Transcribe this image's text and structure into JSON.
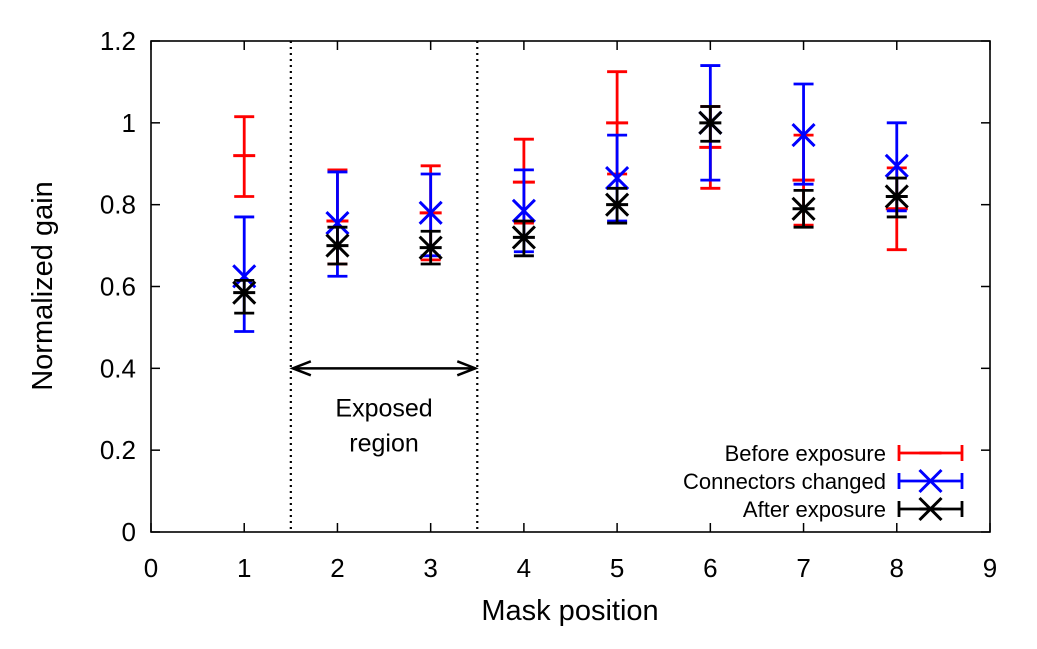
{
  "chart_data": {
    "type": "scatter",
    "title": "",
    "xlabel": "Mask position",
    "ylabel": "Normalized gain",
    "xlim": [
      0,
      9
    ],
    "ylim": [
      0,
      1.2
    ],
    "x_ticks": [
      "0",
      "1",
      "2",
      "3",
      "4",
      "5",
      "6",
      "7",
      "8",
      "9"
    ],
    "y_ticks": [
      "0",
      "0.2",
      "0.4",
      "0.6",
      "0.8",
      "1",
      "1.2"
    ],
    "grid": false,
    "legend_position": "bottom-right",
    "error_bars": true,
    "series": [
      {
        "name": "Before exposure",
        "color": "#ff0000",
        "marker": "plus",
        "points": [
          {
            "x": 1,
            "y": 0.92,
            "yerr": [
              0.82,
              1.015
            ]
          },
          {
            "x": 2,
            "y": 0.76,
            "yerr": [
              0.655,
              0.885
            ]
          },
          {
            "x": 3,
            "y": 0.78,
            "yerr": [
              0.665,
              0.895
            ]
          },
          {
            "x": 4,
            "y": 0.855,
            "yerr": [
              0.755,
              0.96
            ]
          },
          {
            "x": 5,
            "y": 1.0,
            "yerr": [
              0.875,
              1.125
            ]
          },
          {
            "x": 6,
            "y": 0.94,
            "yerr": [
              0.84,
              1.04
            ]
          },
          {
            "x": 7,
            "y": 0.86,
            "yerr": [
              0.75,
              0.97
            ]
          },
          {
            "x": 8,
            "y": 0.79,
            "yerr": [
              0.69,
              0.89
            ]
          }
        ]
      },
      {
        "name": "Connectors changed",
        "color": "#0000ff",
        "marker": "x",
        "points": [
          {
            "x": 1,
            "y": 0.625,
            "yerr": [
              0.49,
              0.77
            ]
          },
          {
            "x": 2,
            "y": 0.755,
            "yerr": [
              0.625,
              0.88
            ]
          },
          {
            "x": 3,
            "y": 0.78,
            "yerr": [
              0.675,
              0.875
            ]
          },
          {
            "x": 4,
            "y": 0.785,
            "yerr": [
              0.685,
              0.885
            ]
          },
          {
            "x": 5,
            "y": 0.865,
            "yerr": [
              0.76,
              0.97
            ]
          },
          {
            "x": 6,
            "y": 1.0,
            "yerr": [
              0.86,
              1.14
            ]
          },
          {
            "x": 7,
            "y": 0.97,
            "yerr": [
              0.85,
              1.095
            ]
          },
          {
            "x": 8,
            "y": 0.895,
            "yerr": [
              0.785,
              1.0
            ]
          }
        ]
      },
      {
        "name": "After exposure",
        "color": "#000000",
        "marker": "star",
        "points": [
          {
            "x": 1,
            "y": 0.585,
            "yerr": [
              0.535,
              0.615
            ]
          },
          {
            "x": 2,
            "y": 0.7,
            "yerr": [
              0.655,
              0.745
            ]
          },
          {
            "x": 3,
            "y": 0.695,
            "yerr": [
              0.655,
              0.735
            ]
          },
          {
            "x": 4,
            "y": 0.72,
            "yerr": [
              0.675,
              0.76
            ]
          },
          {
            "x": 5,
            "y": 0.8,
            "yerr": [
              0.755,
              0.84
            ]
          },
          {
            "x": 6,
            "y": 1.0,
            "yerr": [
              0.955,
              1.04
            ]
          },
          {
            "x": 7,
            "y": 0.79,
            "yerr": [
              0.745,
              0.835
            ]
          },
          {
            "x": 8,
            "y": 0.82,
            "yerr": [
              0.77,
              0.865
            ]
          }
        ]
      }
    ],
    "vertical_lines": [
      {
        "x": 1.5,
        "style": "dotted",
        "color": "#000000"
      },
      {
        "x": 3.5,
        "style": "dotted",
        "color": "#000000"
      }
    ],
    "annotations": [
      {
        "type": "double-arrow",
        "x1": 1.5,
        "x2": 3.5,
        "y": 0.4
      },
      {
        "type": "text",
        "lines": [
          "Exposed",
          "region"
        ],
        "x": 2.5,
        "y": 0.3
      }
    ]
  }
}
